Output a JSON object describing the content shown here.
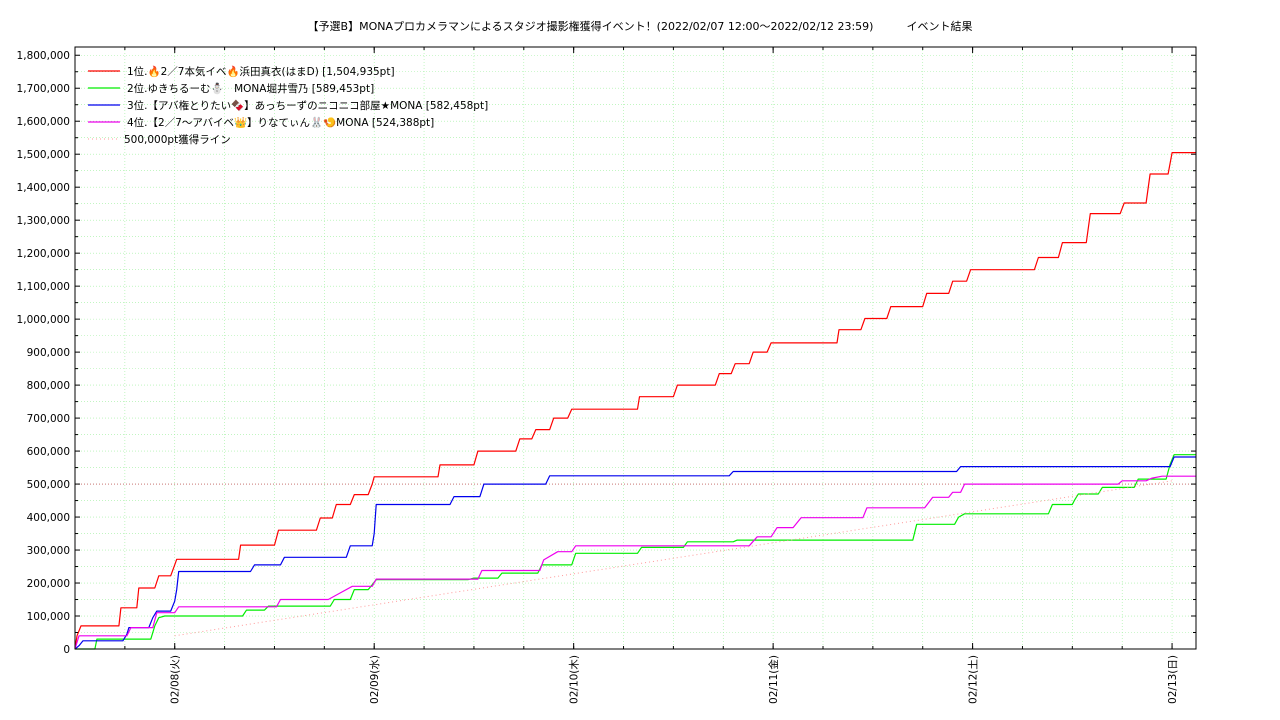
{
  "chart_data": {
    "type": "line",
    "title": "【予選B】MONAプロカメラマンによるスタジオ撮影権獲得イベント！(2022/02/07 12:00〜2022/02/12 23:59)　　　イベント結果",
    "xlabel": "",
    "ylabel": "",
    "x_tick_labels": [
      "02/08(火)",
      "02/09(水)",
      "02/10(木)",
      "02/11(金)",
      "02/12(土)",
      "02/13(日)"
    ],
    "y_tick_labels": [
      "0",
      "100,000",
      "200,000",
      "300,000",
      "400,000",
      "500,000",
      "600,000",
      "700,000",
      "800,000",
      "900,000",
      "1,000,000",
      "1,100,000",
      "1,200,000",
      "1,300,000",
      "1,400,000",
      "1,500,000",
      "1,600,000",
      "1,700,000",
      "1,800,000"
    ],
    "x_unit": "days from 02/07 12:00",
    "xlim": [
      0,
      5.62
    ],
    "ylim": [
      0,
      1825000
    ],
    "grid": true,
    "legend_position": "top-left",
    "series": [
      {
        "name": "1位.🔥2／7本気イベ🔥浜田真衣(はまD) [1,504,935pt]",
        "color": "#ff0000",
        "style": "solid",
        "points": [
          [
            0,
            0
          ],
          [
            0.01,
            40000
          ],
          [
            0.03,
            70000
          ],
          [
            0.22,
            70000
          ],
          [
            0.23,
            125000
          ],
          [
            0.31,
            125000
          ],
          [
            0.32,
            185000
          ],
          [
            0.4,
            185000
          ],
          [
            0.42,
            222000
          ],
          [
            0.48,
            222000
          ],
          [
            0.5,
            255000
          ],
          [
            0.51,
            272000
          ],
          [
            0.82,
            272000
          ],
          [
            0.83,
            315000
          ],
          [
            1.0,
            315000
          ],
          [
            1.02,
            360000
          ],
          [
            1.21,
            360000
          ],
          [
            1.23,
            397000
          ],
          [
            1.29,
            397000
          ],
          [
            1.31,
            438000
          ],
          [
            1.38,
            438000
          ],
          [
            1.4,
            468000
          ],
          [
            1.47,
            468000
          ],
          [
            1.49,
            500000
          ],
          [
            1.5,
            522000
          ],
          [
            1.82,
            522000
          ],
          [
            1.83,
            558000
          ],
          [
            2.0,
            558000
          ],
          [
            2.02,
            600000
          ],
          [
            2.21,
            600000
          ],
          [
            2.23,
            637000
          ],
          [
            2.29,
            637000
          ],
          [
            2.31,
            665000
          ],
          [
            2.38,
            665000
          ],
          [
            2.4,
            700000
          ],
          [
            2.47,
            700000
          ],
          [
            2.49,
            727000
          ],
          [
            2.82,
            727000
          ],
          [
            2.83,
            765000
          ],
          [
            3.0,
            765000
          ],
          [
            3.02,
            800000
          ],
          [
            3.21,
            800000
          ],
          [
            3.23,
            835000
          ],
          [
            3.29,
            835000
          ],
          [
            3.31,
            865000
          ],
          [
            3.38,
            865000
          ],
          [
            3.4,
            900000
          ],
          [
            3.47,
            900000
          ],
          [
            3.49,
            928000
          ],
          [
            3.82,
            928000
          ],
          [
            3.83,
            968000
          ],
          [
            3.94,
            968000
          ],
          [
            3.96,
            1002000
          ],
          [
            4.07,
            1002000
          ],
          [
            4.09,
            1038000
          ],
          [
            4.25,
            1038000
          ],
          [
            4.27,
            1078000
          ],
          [
            4.38,
            1078000
          ],
          [
            4.4,
            1115000
          ],
          [
            4.47,
            1115000
          ],
          [
            4.49,
            1150000
          ],
          [
            4.81,
            1150000
          ],
          [
            4.83,
            1187000
          ],
          [
            4.93,
            1187000
          ],
          [
            4.95,
            1232000
          ],
          [
            5.07,
            1232000
          ],
          [
            5.09,
            1320000
          ],
          [
            5.24,
            1320000
          ],
          [
            5.26,
            1352000
          ],
          [
            5.37,
            1352000
          ],
          [
            5.39,
            1440000
          ],
          [
            5.48,
            1440000
          ],
          [
            5.5,
            1505000
          ],
          [
            5.62,
            1505000
          ]
        ]
      },
      {
        "name": "2位.ゆきちるーむ⛄　MONA堀井雪乃 [589,453pt]",
        "color": "#00ee00",
        "style": "solid",
        "points": [
          [
            0,
            0
          ],
          [
            0.1,
            0
          ],
          [
            0.11,
            30000
          ],
          [
            0.38,
            30000
          ],
          [
            0.4,
            70000
          ],
          [
            0.42,
            95000
          ],
          [
            0.45,
            100000
          ],
          [
            0.84,
            100000
          ],
          [
            0.86,
            118000
          ],
          [
            0.95,
            118000
          ],
          [
            0.97,
            130000
          ],
          [
            1.28,
            130000
          ],
          [
            1.3,
            150000
          ],
          [
            1.38,
            150000
          ],
          [
            1.4,
            180000
          ],
          [
            1.47,
            180000
          ],
          [
            1.49,
            195000
          ],
          [
            1.51,
            210000
          ],
          [
            1.97,
            210000
          ],
          [
            2.0,
            215000
          ],
          [
            2.12,
            215000
          ],
          [
            2.14,
            230000
          ],
          [
            2.32,
            230000
          ],
          [
            2.34,
            255000
          ],
          [
            2.49,
            255000
          ],
          [
            2.51,
            290000
          ],
          [
            2.82,
            290000
          ],
          [
            2.84,
            308000
          ],
          [
            3.05,
            308000
          ],
          [
            3.07,
            325000
          ],
          [
            3.3,
            325000
          ],
          [
            3.32,
            330000
          ],
          [
            4.2,
            330000
          ],
          [
            4.22,
            378000
          ],
          [
            4.41,
            378000
          ],
          [
            4.43,
            400000
          ],
          [
            4.46,
            410000
          ],
          [
            4.88,
            410000
          ],
          [
            4.9,
            438000
          ],
          [
            5.0,
            438000
          ],
          [
            5.01,
            450000
          ],
          [
            5.03,
            470000
          ],
          [
            5.13,
            470000
          ],
          [
            5.15,
            490000
          ],
          [
            5.31,
            490000
          ],
          [
            5.33,
            515000
          ],
          [
            5.47,
            515000
          ],
          [
            5.49,
            560000
          ],
          [
            5.51,
            589000
          ],
          [
            5.62,
            589000
          ]
        ]
      },
      {
        "name": "3位.【アバ権とりたい🍫】あっちーずのニコニコ部屋★MONA [582,458pt]",
        "color": "#0000ee",
        "style": "solid",
        "points": [
          [
            0,
            0
          ],
          [
            0.02,
            10000
          ],
          [
            0.04,
            25000
          ],
          [
            0.24,
            25000
          ],
          [
            0.26,
            45000
          ],
          [
            0.27,
            65000
          ],
          [
            0.37,
            65000
          ],
          [
            0.39,
            95000
          ],
          [
            0.41,
            115000
          ],
          [
            0.48,
            115000
          ],
          [
            0.5,
            145000
          ],
          [
            0.51,
            180000
          ],
          [
            0.52,
            235000
          ],
          [
            0.88,
            235000
          ],
          [
            0.9,
            255000
          ],
          [
            1.03,
            255000
          ],
          [
            1.05,
            278000
          ],
          [
            1.36,
            278000
          ],
          [
            1.38,
            313000
          ],
          [
            1.49,
            313000
          ],
          [
            1.5,
            350000
          ],
          [
            1.51,
            438000
          ],
          [
            1.88,
            438000
          ],
          [
            1.9,
            462000
          ],
          [
            2.03,
            462000
          ],
          [
            2.05,
            500000
          ],
          [
            2.36,
            500000
          ],
          [
            2.38,
            525000
          ],
          [
            3.28,
            525000
          ],
          [
            3.3,
            538000
          ],
          [
            4.42,
            538000
          ],
          [
            4.44,
            553000
          ],
          [
            5.49,
            553000
          ],
          [
            5.51,
            582000
          ],
          [
            5.62,
            582000
          ]
        ]
      },
      {
        "name": "4位.【2／7〜アバイベ👑】りなてぃん🐰🍤MONA [524,388pt]",
        "color": "#ee00ee",
        "style": "solid",
        "points": [
          [
            0,
            0
          ],
          [
            0.02,
            40000
          ],
          [
            0.26,
            40000
          ],
          [
            0.28,
            65000
          ],
          [
            0.39,
            65000
          ],
          [
            0.41,
            110000
          ],
          [
            0.5,
            110000
          ],
          [
            0.52,
            128000
          ],
          [
            1.01,
            128000
          ],
          [
            1.03,
            150000
          ],
          [
            1.27,
            150000
          ],
          [
            1.33,
            170000
          ],
          [
            1.39,
            190000
          ],
          [
            1.49,
            190000
          ],
          [
            1.51,
            212000
          ],
          [
            2.02,
            212000
          ],
          [
            2.04,
            238000
          ],
          [
            2.33,
            238000
          ],
          [
            2.35,
            270000
          ],
          [
            2.42,
            295000
          ],
          [
            2.49,
            295000
          ],
          [
            2.51,
            313000
          ],
          [
            3.38,
            313000
          ],
          [
            3.42,
            340000
          ],
          [
            3.49,
            340000
          ],
          [
            3.52,
            368000
          ],
          [
            3.6,
            368000
          ],
          [
            3.64,
            398000
          ],
          [
            3.95,
            398000
          ],
          [
            3.97,
            428000
          ],
          [
            4.26,
            428000
          ],
          [
            4.3,
            460000
          ],
          [
            4.38,
            460000
          ],
          [
            4.4,
            475000
          ],
          [
            4.44,
            475000
          ],
          [
            4.46,
            500000
          ],
          [
            5.23,
            500000
          ],
          [
            5.25,
            510000
          ],
          [
            5.37,
            510000
          ],
          [
            5.4,
            518000
          ],
          [
            5.45,
            524000
          ],
          [
            5.62,
            524000
          ]
        ]
      },
      {
        "name": "500,000pt獲得ライン",
        "color": "#ff9a9a",
        "style": "dotted",
        "points": [
          [
            0.5,
            40000
          ],
          [
            5.5,
            510000
          ]
        ]
      }
    ],
    "reference_lines": [
      {
        "y": 500000,
        "color": "#cc7777",
        "style": "dotted"
      }
    ]
  }
}
